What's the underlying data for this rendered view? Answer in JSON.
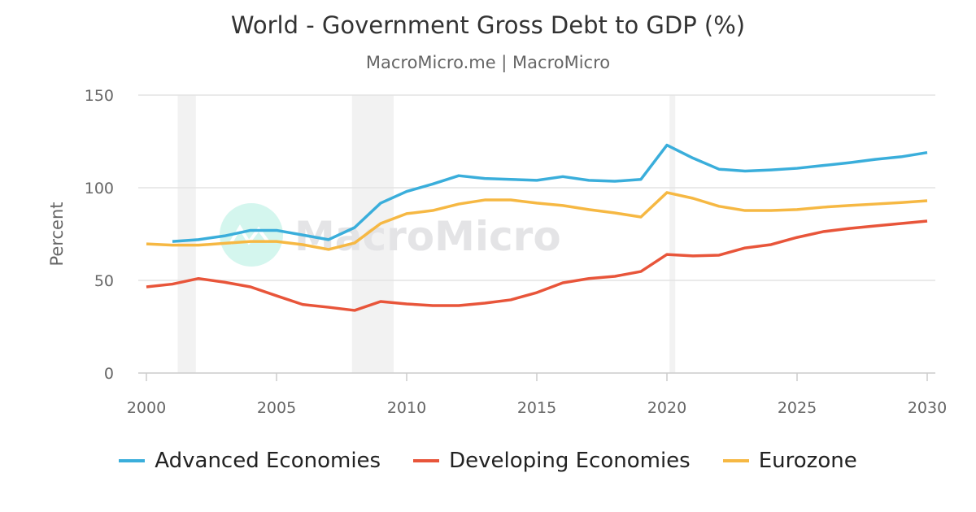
{
  "chart_data": {
    "type": "line",
    "title": "World - Government Gross Debt to GDP (%)",
    "subtitle": "MacroMicro.me | MacroMicro",
    "ylabel": "Percent",
    "xlabel": "",
    "ylim": [
      0,
      150
    ],
    "xlim": [
      2000,
      2030
    ],
    "yticks": [
      0,
      50,
      100,
      150
    ],
    "xticks": [
      2000,
      2005,
      2010,
      2015,
      2020,
      2025,
      2030
    ],
    "grid": true,
    "legend": "bottom",
    "watermark": "MacroMicro",
    "recession_bands": [
      [
        2001.2,
        2001.9
      ],
      [
        2007.9,
        2009.5
      ],
      [
        2020.1,
        2020.3
      ]
    ],
    "series": [
      {
        "name": "Advanced Economies",
        "color": "#3AAEDB",
        "x": [
          2001,
          2002,
          2003,
          2004,
          2005,
          2006,
          2007,
          2008,
          2009,
          2010,
          2011,
          2012,
          2013,
          2014,
          2015,
          2016,
          2017,
          2018,
          2019,
          2020,
          2021,
          2022,
          2023,
          2024,
          2025,
          2026,
          2027,
          2028,
          2029,
          2030
        ],
        "values": [
          71,
          72,
          74,
          77,
          77,
          74.5,
          72,
          78.5,
          91.7,
          98,
          102,
          106.5,
          105,
          104.5,
          104,
          106,
          104,
          103.5,
          104.5,
          123,
          116,
          110,
          109,
          109.6,
          110.5,
          112,
          113.5,
          115.3,
          116.7,
          119
        ]
      },
      {
        "name": "Developing Economies",
        "color": "#E8553A",
        "x": [
          2000,
          2001,
          2002,
          2003,
          2004,
          2005,
          2006,
          2007,
          2008,
          2009,
          2010,
          2011,
          2012,
          2013,
          2014,
          2015,
          2016,
          2017,
          2018,
          2019,
          2020,
          2021,
          2022,
          2023,
          2024,
          2025,
          2026,
          2027,
          2028,
          2029,
          2030
        ],
        "values": [
          46.5,
          48,
          51,
          49,
          46.5,
          41.7,
          37,
          35.5,
          33.8,
          38.6,
          37.3,
          36.4,
          36.4,
          37.7,
          39.5,
          43.4,
          48.7,
          51,
          52.2,
          54.8,
          64,
          63.2,
          63.6,
          67.5,
          69.3,
          73.2,
          76.3,
          78,
          79.4,
          80.7,
          82
        ]
      },
      {
        "name": "Eurozone",
        "color": "#F6B843",
        "x": [
          2000,
          2001,
          2002,
          2003,
          2004,
          2005,
          2006,
          2007,
          2008,
          2009,
          2010,
          2011,
          2012,
          2013,
          2014,
          2015,
          2016,
          2017,
          2018,
          2019,
          2020,
          2021,
          2022,
          2023,
          2024,
          2025,
          2026,
          2027,
          2028,
          2029,
          2030
        ],
        "values": [
          69.7,
          69,
          69,
          70,
          71,
          71,
          69.3,
          66.7,
          70.2,
          80.7,
          86,
          87.7,
          91.2,
          93.4,
          93.4,
          91.7,
          90.4,
          88.2,
          86.4,
          84.2,
          97.4,
          94.3,
          90,
          87.7,
          87.7,
          88.2,
          89.5,
          90.4,
          91.2,
          92,
          93
        ]
      }
    ]
  }
}
